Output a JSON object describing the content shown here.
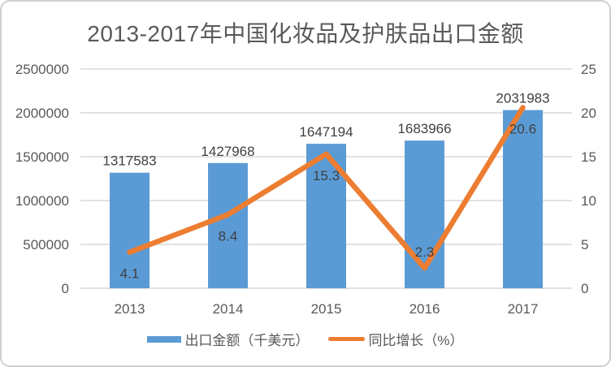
{
  "chart_data": {
    "type": "bar+line",
    "title": "2013-2017年中国化妆品及护肤品出口金额",
    "categories": [
      "2013",
      "2014",
      "2015",
      "2016",
      "2017"
    ],
    "series": [
      {
        "name": "出口金额（千美元）",
        "type": "bar",
        "axis": "left",
        "color": "#5B9BD5",
        "values": [
          1317583,
          1427968,
          1647194,
          1683966,
          2031983
        ],
        "data_labels": [
          "1317583",
          "1427968",
          "1647194",
          "1683966",
          "2031983"
        ]
      },
      {
        "name": "同比增长（%）",
        "type": "line",
        "axis": "right",
        "color": "#ED7D31",
        "values": [
          4.1,
          8.4,
          15.3,
          2.3,
          20.6
        ],
        "data_labels": [
          "4.1",
          "8.4",
          "15.3",
          "2.3",
          "20.6"
        ],
        "label_positions": [
          "below",
          "below",
          "below",
          "above",
          "below"
        ]
      }
    ],
    "axes": {
      "left": {
        "min": 0,
        "max": 2500000,
        "ticks": [
          "0",
          "500000",
          "1000000",
          "1500000",
          "2000000",
          "2500000"
        ]
      },
      "right": {
        "min": 0,
        "max": 25,
        "ticks": [
          "0",
          "5",
          "10",
          "15",
          "20",
          "25"
        ]
      }
    },
    "grid": true,
    "legend_position": "bottom"
  },
  "style": {
    "bar_color": "#5B9BD5",
    "line_color": "#ED7D31",
    "grid_color": "#D9D9D9",
    "axis_text_color": "#595959",
    "data_label_color": "#404040",
    "title_color": "#595959",
    "border_color": "#D0D0D0",
    "background": "#FFFFFF"
  }
}
